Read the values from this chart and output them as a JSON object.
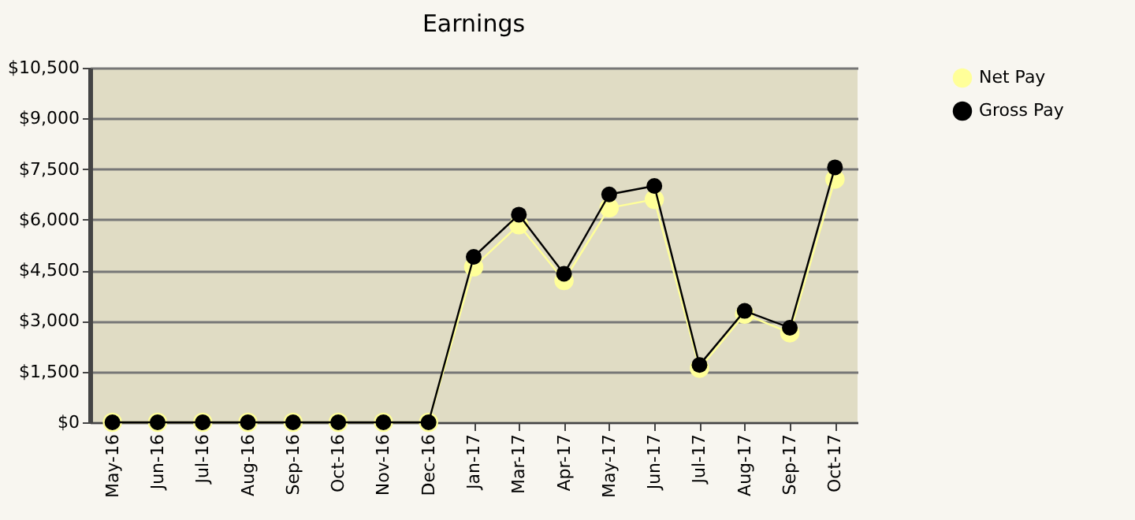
{
  "chart_data": {
    "type": "line",
    "title": "Earnings",
    "categories": [
      "May-16",
      "Jun-16",
      "Jul-16",
      "Aug-16",
      "Sep-16",
      "Oct-16",
      "Nov-16",
      "Dec-16",
      "Jan-17",
      "Mar-17",
      "Apr-17",
      "May-17",
      "Jun-17",
      "Jul-17",
      "Aug-17",
      "Sep-17",
      "Oct-17"
    ],
    "series": [
      {
        "name": "Net Pay",
        "color": "#ffff99",
        "values": [
          0,
          0,
          0,
          0,
          0,
          0,
          0,
          0,
          4600,
          5850,
          4200,
          6350,
          6600,
          1600,
          3200,
          2650,
          7200
        ]
      },
      {
        "name": "Gross Pay",
        "color": "#000000",
        "values": [
          0,
          0,
          0,
          0,
          0,
          0,
          0,
          0,
          4900,
          6150,
          4400,
          6750,
          7000,
          1700,
          3300,
          2800,
          7550
        ]
      }
    ],
    "ylim": [
      0,
      10500
    ],
    "yticks": [
      {
        "value": 0,
        "label": "$0"
      },
      {
        "value": 1500,
        "label": "$1,500"
      },
      {
        "value": 3000,
        "label": "$3,000"
      },
      {
        "value": 4500,
        "label": "$4,500"
      },
      {
        "value": 6000,
        "label": "$6,000"
      },
      {
        "value": 7500,
        "label": "$7,500"
      },
      {
        "value": 9000,
        "label": "$9,000"
      },
      {
        "value": 10500,
        "label": "$10,500"
      }
    ],
    "grid": "y",
    "legend": "right",
    "marker": "circle",
    "line_style": "solid"
  }
}
